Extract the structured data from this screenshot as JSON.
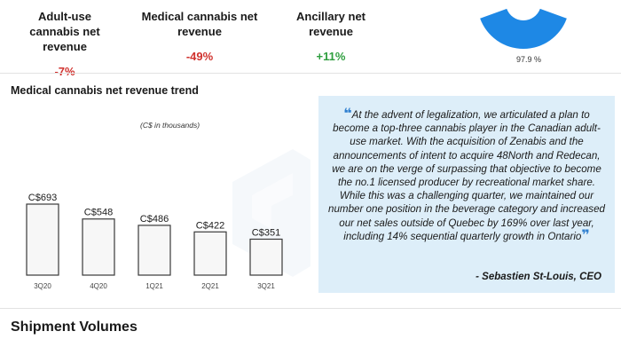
{
  "kpis": [
    {
      "label": "Adult-use cannabis net revenue",
      "value": "-7%"
    },
    {
      "label": "Medical cannabis net revenue",
      "value": "-49%"
    },
    {
      "label": "Ancillary net revenue",
      "value": "+11%"
    }
  ],
  "donut": {
    "label": "97.9 %",
    "value": 97.9,
    "color": "#1e88e5"
  },
  "trend": {
    "title": "Medical cannabis net revenue trend",
    "units": "(C$ in thousands)"
  },
  "chart_data": {
    "type": "bar",
    "categories": [
      "3Q20",
      "4Q20",
      "1Q21",
      "2Q21",
      "3Q21"
    ],
    "values": [
      693,
      548,
      486,
      422,
      351
    ],
    "data_labels": [
      "C$693",
      "C$548",
      "C$486",
      "C$422",
      "C$351"
    ],
    "title": "Medical cannabis net revenue trend",
    "ylabel": "",
    "xlabel": "",
    "ylim": [
      0,
      693
    ],
    "grid": false
  },
  "quote": {
    "open_mark": "❝",
    "close_mark": "❞",
    "text": "At the advent of legalization, we articulated a plan to become a top-three cannabis player in the Canadian adult-use market. With the acquisition of Zenabis and the announcements of intent to acquire 48North and Redecan, we are on the verge of surpassing that objective to become the no.1 licensed producer by recreational market share. While this was a challenging quarter, we maintained our number one position in the beverage category and increased our net sales outside of Quebec by 169% over last year, including 14% sequential quarterly growth in Ontario",
    "author": "- Sebastien St-Louis, CEO"
  },
  "shipment": {
    "title": "Shipment Volumes"
  }
}
